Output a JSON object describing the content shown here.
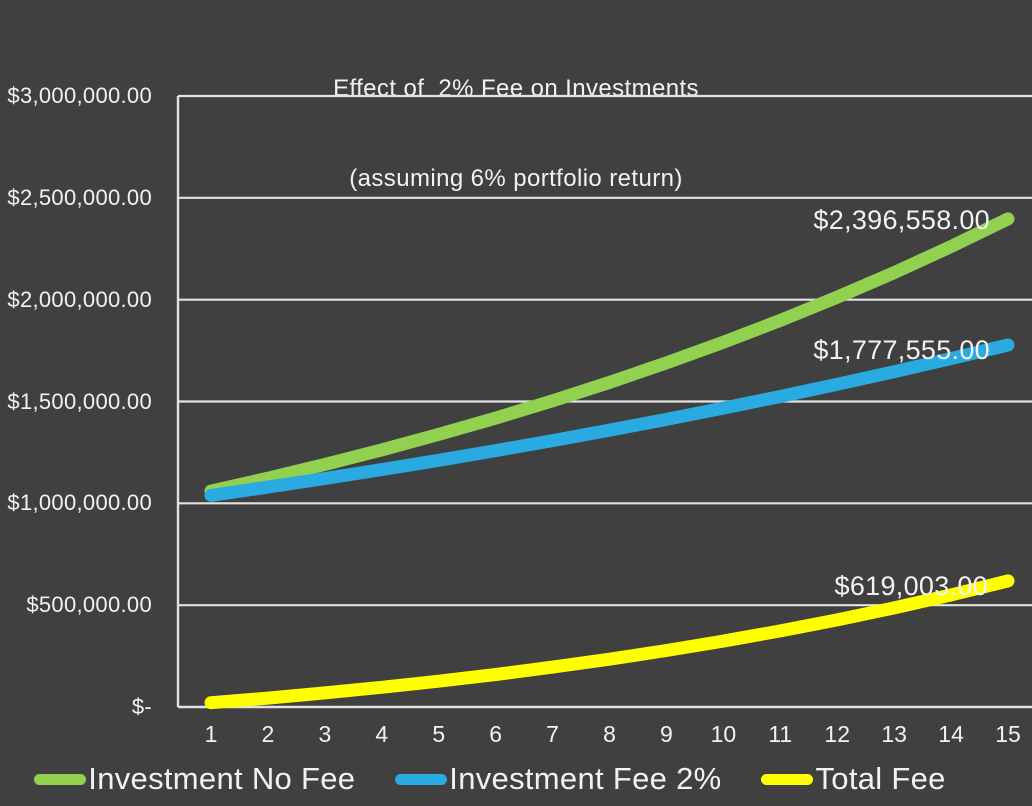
{
  "title": {
    "line1": "Effect of  2% Fee on Investments",
    "line2": "(assuming 6% portfolio return)"
  },
  "colors": {
    "background": "#404040",
    "gridline": "#e2e2e2",
    "axis": "#e2e2e2",
    "text": "#f2f2f2"
  },
  "chart_data": {
    "type": "line",
    "title": "Effect of  2% Fee on Investments (assuming 6% portfolio return)",
    "xlabel": "",
    "ylabel": "",
    "x": [
      1,
      2,
      3,
      4,
      5,
      6,
      7,
      8,
      9,
      10,
      11,
      12,
      13,
      14,
      15
    ],
    "ylim": [
      0,
      3000000
    ],
    "y_tick_step": 500000,
    "y_tick_labels_top_to_bottom": [
      "$3,000,000.00",
      "$2,500,000.00",
      "$2,000,000.00",
      "$1,500,000.00",
      "$1,000,000.00",
      "$500,000.00",
      "$-"
    ],
    "grid": "horizontal",
    "legend_position": "bottom",
    "series": [
      {
        "name": "Investment No Fee",
        "color": "#92d050",
        "end_label": "$2,396,558.00",
        "end_value": 2396558,
        "values": [
          1060000,
          1123600,
          1191016,
          1262477,
          1338226,
          1418519,
          1503630,
          1593848,
          1689479,
          1790847,
          1898299,
          2012196,
          2132928,
          2260904,
          2396558
        ]
      },
      {
        "name": "Investment Fee 2%",
        "color": "#29abe2",
        "end_label": "$1,777,555.00",
        "end_value": 1777555,
        "values": [
          1039095,
          1079717,
          1121928,
          1165789,
          1211365,
          1258722,
          1307931,
          1359064,
          1412196,
          1467405,
          1524773,
          1584384,
          1646326,
          1710690,
          1777555
        ]
      },
      {
        "name": "Total Fee",
        "color": "#ffff00",
        "end_label": "$619,003.00",
        "end_value": 619003,
        "values": [
          20905,
          43883,
          69088,
          96688,
          126861,
          159797,
          195699,
          234784,
          277283,
          323442,
          373526,
          427812,
          486602,
          550214,
          619003
        ]
      }
    ]
  }
}
